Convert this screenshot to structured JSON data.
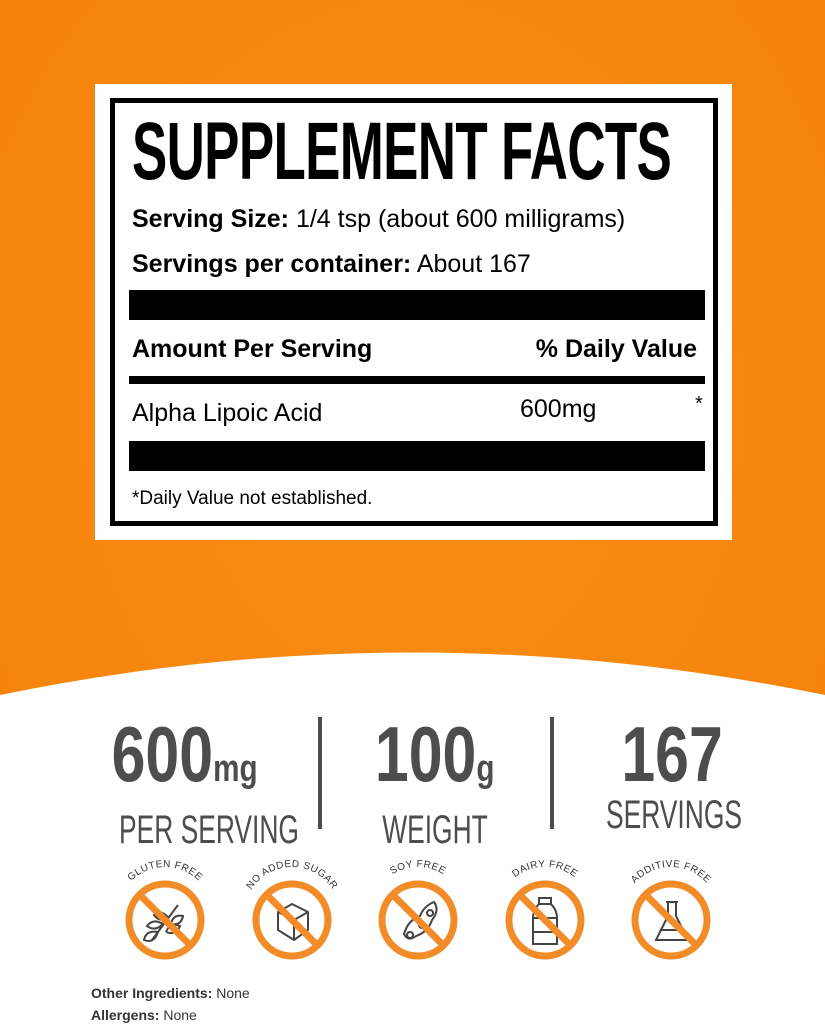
{
  "colors": {
    "orange": "#F7890F",
    "icon_orange": "#F28C28",
    "gray": "#4d4d4d"
  },
  "facts": {
    "title": "SUPPLEMENT FACTS",
    "serving_size_label": "Serving Size:",
    "serving_size_value": "1/4 tsp (about 600 milligrams)",
    "servings_label": "Servings per container:",
    "servings_value": "About 167",
    "amount_header": "Amount Per Serving",
    "dv_header": "% Daily Value",
    "ingredient": {
      "name": "Alpha Lipoic Acid",
      "amount": "600mg",
      "dv": "*"
    },
    "footnote": "*Daily Value not established."
  },
  "stats": [
    {
      "value": "600",
      "unit": "mg",
      "label": "PER SERVING"
    },
    {
      "value": "100",
      "unit": "g",
      "label": "WEIGHT"
    },
    {
      "value": "167",
      "unit": "",
      "label": "SERVINGS"
    }
  ],
  "badges": [
    {
      "label": "GLUTEN FREE",
      "icon": "wheat-icon"
    },
    {
      "label": "NO ADDED SUGAR",
      "icon": "sugar-cube-icon"
    },
    {
      "label": "SOY FREE",
      "icon": "soybean-icon"
    },
    {
      "label": "DAIRY FREE",
      "icon": "milk-bottle-icon"
    },
    {
      "label": "ADDITIVE FREE",
      "icon": "flask-icon"
    }
  ],
  "footer": {
    "other_label": "Other Ingredients:",
    "other_value": "None",
    "allergens_label": "Allergens:",
    "allergens_value": "None"
  }
}
